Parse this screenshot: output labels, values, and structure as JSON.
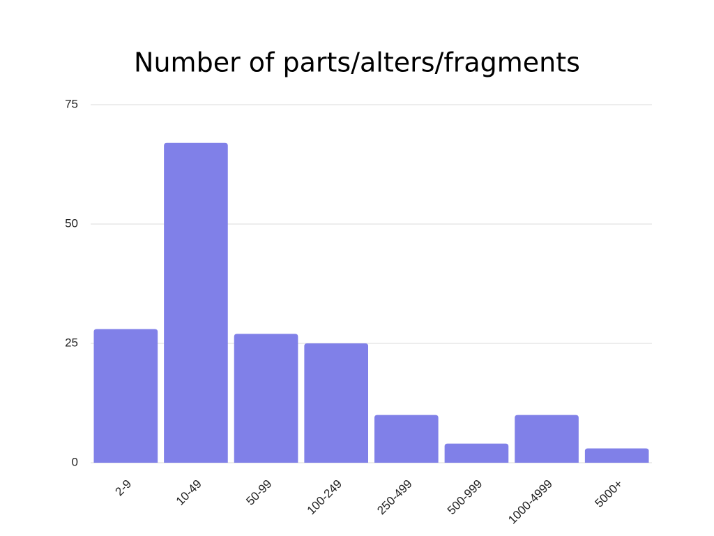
{
  "chart_data": {
    "type": "bar",
    "title": "Number of parts/alters/fragments",
    "categories": [
      "2-9",
      "10-49",
      "50-99",
      "100-249",
      "250-499",
      "500-999",
      "1000-4999",
      "5000+"
    ],
    "values": [
      28,
      67,
      27,
      25,
      10,
      4,
      10,
      3
    ],
    "color": "#8080e8",
    "ylim": [
      0,
      75
    ],
    "yticks": [
      0,
      25,
      50,
      75
    ],
    "grid": true
  }
}
